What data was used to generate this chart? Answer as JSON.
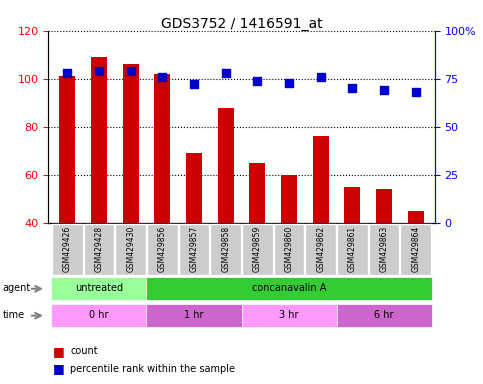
{
  "title": "GDS3752 / 1416591_at",
  "samples": [
    "GSM429426",
    "GSM429428",
    "GSM429430",
    "GSM429856",
    "GSM429857",
    "GSM429858",
    "GSM429859",
    "GSM429860",
    "GSM429862",
    "GSM429861",
    "GSM429863",
    "GSM429864"
  ],
  "counts": [
    101,
    109,
    106,
    102,
    69,
    88,
    65,
    60,
    76,
    55,
    54,
    45
  ],
  "percentile": [
    78,
    79,
    79,
    76,
    72,
    78,
    74,
    73,
    76,
    70,
    69,
    68
  ],
  "ylim_left": [
    40,
    120
  ],
  "ylim_right": [
    0,
    100
  ],
  "yticks_left": [
    40,
    60,
    80,
    100,
    120
  ],
  "yticks_right": [
    0,
    25,
    50,
    75,
    100
  ],
  "bar_color": "#cc0000",
  "dot_color": "#0000cc",
  "agent_labels": [
    {
      "text": "untreated",
      "start": 0,
      "end": 3,
      "color": "#99ff99"
    },
    {
      "text": "concanavalin A",
      "start": 3,
      "end": 12,
      "color": "#33cc33"
    }
  ],
  "time_labels": [
    {
      "text": "0 hr",
      "start": 0,
      "end": 3,
      "color": "#ff99ff"
    },
    {
      "text": "1 hr",
      "start": 3,
      "end": 6,
      "color": "#cc66cc"
    },
    {
      "text": "3 hr",
      "start": 6,
      "end": 9,
      "color": "#ff99ff"
    },
    {
      "text": "6 hr",
      "start": 9,
      "end": 12,
      "color": "#cc66cc"
    }
  ],
  "legend_count_color": "#cc0000",
  "legend_pct_color": "#0000cc",
  "background_color": "#ffffff"
}
